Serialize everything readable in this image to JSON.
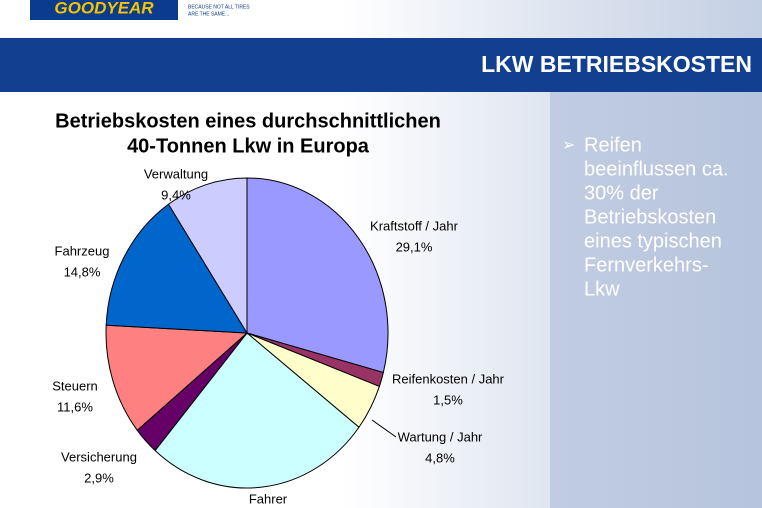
{
  "logo": {
    "brand": "GOODYEAR",
    "tagline_1": "BECAUSE NOT ALL TIRES",
    "tagline_2": "ARE THE SAME..."
  },
  "header": {
    "title": "LKW BETRIEBSKOSTEN"
  },
  "bullet": {
    "lines": [
      "Reifen",
      "beeinflussen ca.",
      "30% der",
      "Betriebskosten",
      "eines typischen",
      "Fernverkehrs-",
      "Lkw"
    ]
  },
  "chart_data": {
    "type": "pie",
    "title": [
      "Betriebskosten eines durchschnittlichen",
      "40-Tonnen Lkw in Europa"
    ],
    "categories": [
      "Kraftstoff / Jahr",
      "Reifenkosten / Jahr",
      "Wartung / Jahr",
      "Fahrer",
      "Versicherung",
      "Steuern",
      "Fahrzeug",
      "Verwaltung"
    ],
    "values": [
      29.1,
      1.5,
      4.8,
      25.9,
      2.9,
      11.6,
      14.8,
      9.4
    ],
    "value_labels": [
      "29,1%",
      "1,5%",
      "4,8%",
      null,
      "2,9%",
      "11,6%",
      "14,8%",
      "9,4%"
    ],
    "colors": [
      "#9999ff",
      "#993366",
      "#ffffcc",
      "#ccffff",
      "#660066",
      "#ff8080",
      "#0066cc",
      "#ccccff"
    ]
  }
}
